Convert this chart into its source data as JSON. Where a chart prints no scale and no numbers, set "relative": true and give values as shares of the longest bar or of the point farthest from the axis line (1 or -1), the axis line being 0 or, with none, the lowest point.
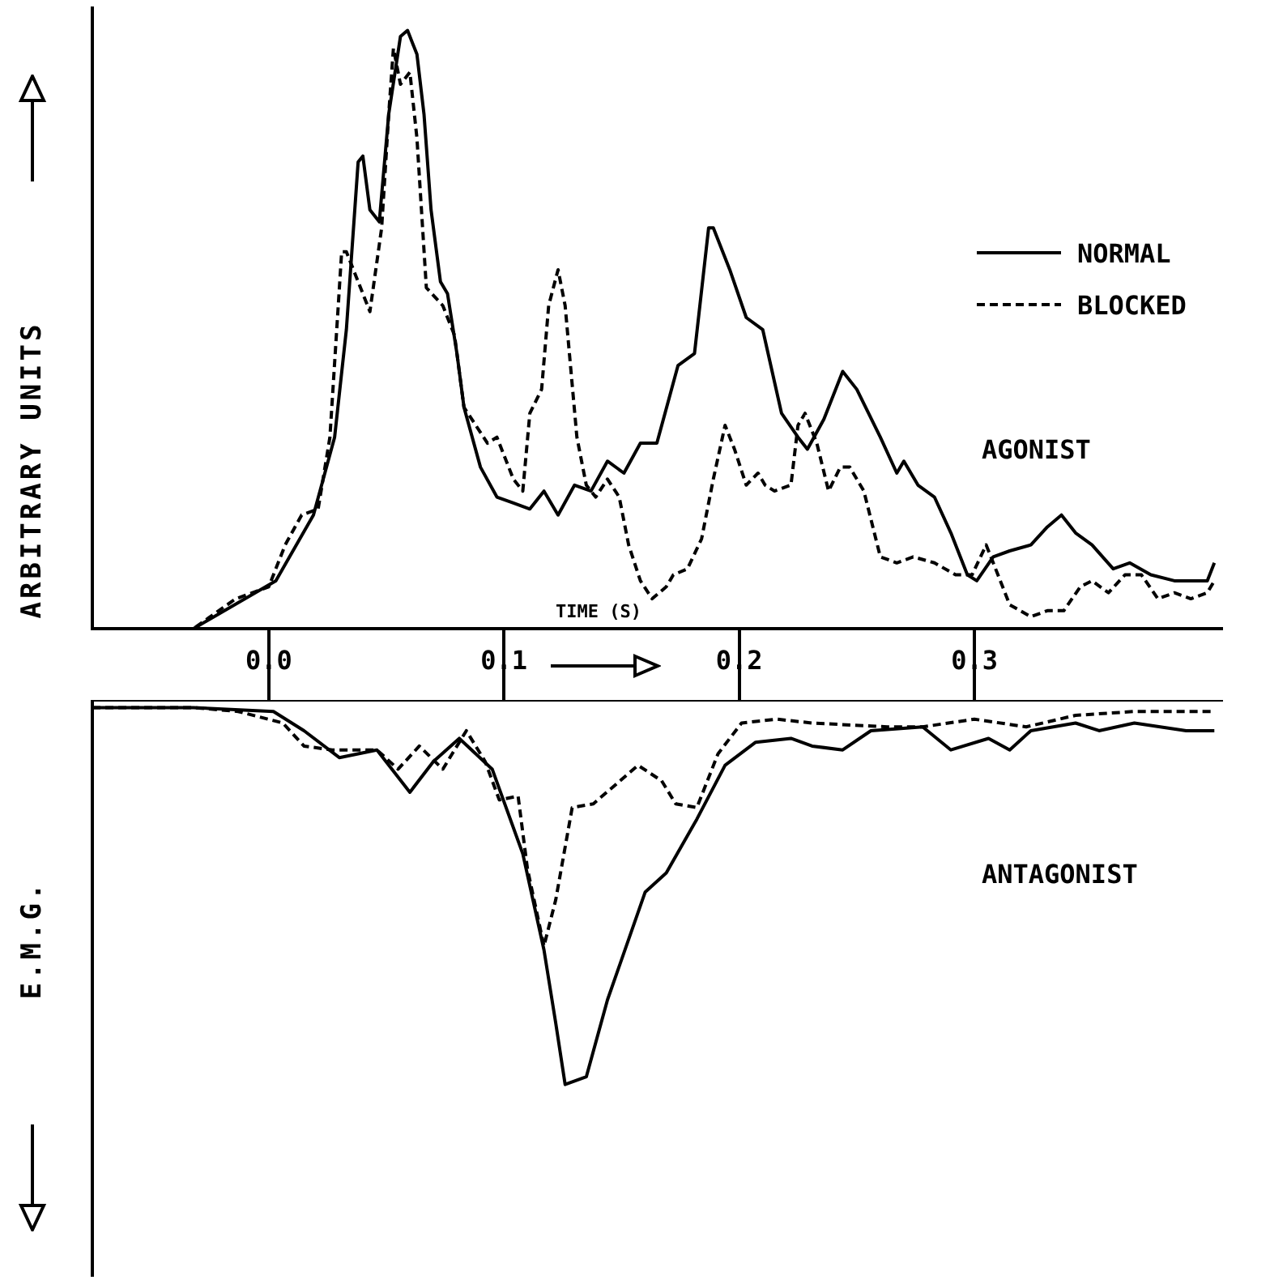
{
  "chart_data": [
    {
      "type": "line",
      "xlabel": "TIME (S)",
      "ylabel": "ARBITRARY UNITS",
      "annotations": [
        "AGONIST"
      ],
      "relative": true,
      "legend": "top right",
      "tick_labels": "x",
      "xlim": [
        -0.075,
        0.405
      ],
      "xticks": [
        {
          "value": 0,
          "label": "0.0"
        },
        {
          "value": 0.1,
          "label": "0.1"
        },
        {
          "value": 0.2,
          "label": "0.2"
        },
        {
          "value": 0.3,
          "label": "0.3"
        }
      ],
      "series": [
        {
          "name": "NORMAL",
          "color": "#000000",
          "line_style": "solid",
          "x": [
            -0.075,
            -0.032,
            0.003,
            0.019,
            0.028,
            0.033,
            0.038,
            0.04,
            0.043,
            0.047,
            0.051,
            0.056,
            0.059,
            0.063,
            0.066,
            0.069,
            0.073,
            0.076,
            0.08,
            0.083,
            0.09,
            0.097,
            0.104,
            0.111,
            0.117,
            0.123,
            0.13,
            0.137,
            0.144,
            0.151,
            0.158,
            0.165,
            0.174,
            0.181,
            0.187,
            0.189,
            0.196,
            0.203,
            0.21,
            0.218,
            0.225,
            0.229,
            0.236,
            0.244,
            0.25,
            0.26,
            0.267,
            0.27,
            0.276,
            0.283,
            0.29,
            0.297,
            0.301,
            0.308,
            0.315,
            0.324,
            0.331,
            0.337,
            0.343,
            0.35,
            0.359,
            0.366,
            0.375,
            0.385,
            0.392,
            0.399,
            0.402
          ],
          "values": [
            0,
            0.0,
            0.08,
            0.19,
            0.32,
            0.5,
            0.78,
            0.79,
            0.7,
            0.68,
            0.86,
            0.99,
            1.0,
            0.96,
            0.86,
            0.7,
            0.58,
            0.56,
            0.46,
            0.37,
            0.27,
            0.22,
            0.21,
            0.2,
            0.23,
            0.19,
            0.24,
            0.23,
            0.28,
            0.26,
            0.31,
            0.31,
            0.44,
            0.46,
            0.67,
            0.67,
            0.6,
            0.52,
            0.5,
            0.36,
            0.32,
            0.3,
            0.35,
            0.43,
            0.4,
            0.32,
            0.26,
            0.28,
            0.24,
            0.22,
            0.16,
            0.09,
            0.08,
            0.12,
            0.13,
            0.14,
            0.17,
            0.19,
            0.16,
            0.14,
            0.1,
            0.11,
            0.09,
            0.08,
            0.08,
            0.08,
            0.11
          ]
        },
        {
          "name": "BLOCKED",
          "color": "#000000",
          "line_style": "dashed",
          "x": [
            -0.075,
            -0.032,
            -0.014,
            0.0,
            0.007,
            0.014,
            0.021,
            0.026,
            0.031,
            0.033,
            0.038,
            0.043,
            0.048,
            0.051,
            0.053,
            0.056,
            0.06,
            0.063,
            0.067,
            0.074,
            0.079,
            0.083,
            0.088,
            0.093,
            0.097,
            0.104,
            0.108,
            0.111,
            0.116,
            0.119,
            0.123,
            0.126,
            0.131,
            0.135,
            0.139,
            0.144,
            0.149,
            0.153,
            0.158,
            0.163,
            0.169,
            0.172,
            0.178,
            0.184,
            0.189,
            0.194,
            0.198,
            0.203,
            0.208,
            0.211,
            0.215,
            0.222,
            0.225,
            0.228,
            0.233,
            0.238,
            0.243,
            0.247,
            0.253,
            0.26,
            0.267,
            0.274,
            0.283,
            0.292,
            0.299,
            0.305,
            0.31,
            0.315,
            0.324,
            0.331,
            0.338,
            0.345,
            0.35,
            0.357,
            0.364,
            0.371,
            0.378,
            0.385,
            0.392,
            0.399,
            0.402
          ],
          "values": [
            0,
            0.0,
            0.05,
            0.07,
            0.14,
            0.19,
            0.2,
            0.32,
            0.63,
            0.63,
            0.58,
            0.53,
            0.67,
            0.86,
            0.97,
            0.91,
            0.93,
            0.82,
            0.57,
            0.54,
            0.49,
            0.37,
            0.34,
            0.31,
            0.32,
            0.25,
            0.23,
            0.36,
            0.4,
            0.54,
            0.6,
            0.54,
            0.32,
            0.24,
            0.22,
            0.25,
            0.22,
            0.14,
            0.08,
            0.05,
            0.07,
            0.09,
            0.1,
            0.15,
            0.25,
            0.34,
            0.3,
            0.24,
            0.26,
            0.24,
            0.23,
            0.24,
            0.34,
            0.36,
            0.31,
            0.23,
            0.27,
            0.27,
            0.23,
            0.12,
            0.11,
            0.12,
            0.11,
            0.09,
            0.09,
            0.14,
            0.09,
            0.04,
            0.02,
            0.03,
            0.03,
            0.07,
            0.08,
            0.06,
            0.09,
            0.09,
            0.05,
            0.06,
            0.05,
            0.06,
            0.08
          ]
        }
      ]
    },
    {
      "type": "line",
      "ylabel": "E.M.G.",
      "annotations": [
        "ANTAGONIST"
      ],
      "relative": true,
      "tick_labels": false,
      "xlim": [
        -0.075,
        0.405
      ],
      "series": [
        {
          "color": "#000000",
          "line_style": "solid",
          "x": [
            -0.075,
            -0.032,
            0.002,
            0.015,
            0.03,
            0.046,
            0.06,
            0.07,
            0.081,
            0.095,
            0.108,
            0.117,
            0.122,
            0.126,
            0.135,
            0.144,
            0.16,
            0.169,
            0.182,
            0.194,
            0.207,
            0.222,
            0.231,
            0.244,
            0.256,
            0.278,
            0.29,
            0.306,
            0.315,
            0.324,
            0.343,
            0.353,
            0.368,
            0.39,
            0.402
          ],
          "values": [
            -0.02,
            -0.02,
            -0.03,
            -0.08,
            -0.15,
            -0.13,
            -0.24,
            -0.16,
            -0.1,
            -0.18,
            -0.4,
            -0.65,
            -0.84,
            -1.0,
            -0.98,
            -0.78,
            -0.5,
            -0.45,
            -0.31,
            -0.17,
            -0.11,
            -0.1,
            -0.12,
            -0.13,
            -0.08,
            -0.07,
            -0.13,
            -0.1,
            -0.13,
            -0.08,
            -0.06,
            -0.08,
            -0.06,
            -0.08,
            -0.08
          ]
        },
        {
          "color": "#000000",
          "line_style": "dashed",
          "x": [
            -0.075,
            -0.032,
            -0.013,
            0.006,
            0.015,
            0.027,
            0.046,
            0.055,
            0.064,
            0.074,
            0.084,
            0.092,
            0.098,
            0.106,
            0.11,
            0.117,
            0.122,
            0.129,
            0.138,
            0.157,
            0.167,
            0.173,
            0.182,
            0.191,
            0.201,
            0.216,
            0.231,
            0.263,
            0.278,
            0.3,
            0.322,
            0.343,
            0.368,
            0.383,
            0.402
          ],
          "values": [
            -0.02,
            -0.02,
            -0.03,
            -0.06,
            -0.12,
            -0.13,
            -0.13,
            -0.18,
            -0.12,
            -0.18,
            -0.08,
            -0.16,
            -0.26,
            -0.25,
            -0.44,
            -0.64,
            -0.52,
            -0.28,
            -0.27,
            -0.17,
            -0.21,
            -0.27,
            -0.28,
            -0.14,
            -0.06,
            -0.05,
            -0.06,
            -0.07,
            -0.07,
            -0.05,
            -0.07,
            -0.04,
            -0.03,
            -0.03,
            -0.03
          ]
        }
      ]
    }
  ]
}
